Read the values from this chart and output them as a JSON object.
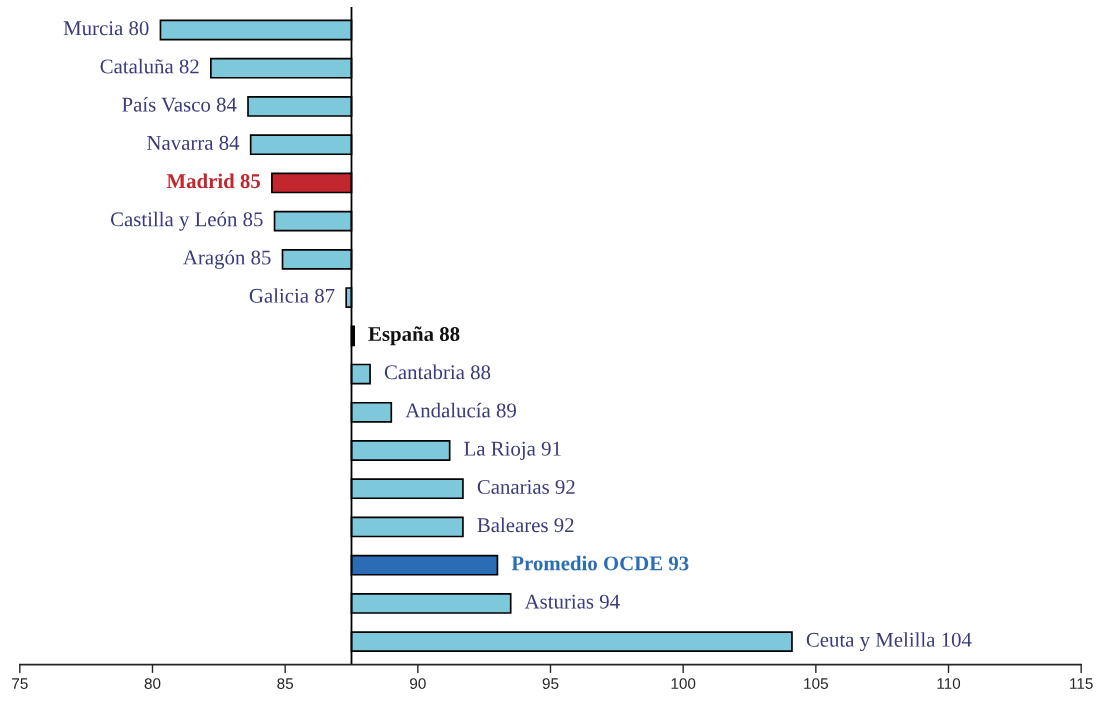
{
  "chart_data": {
    "type": "bar",
    "orientation": "horizontal",
    "categories": [
      "Murcia 80",
      "Cataluña 82",
      "País Vasco 84",
      "Navarra 84",
      "Madrid 85",
      "Castilla y León 85",
      "Aragón 85",
      "Galicia 87",
      "España 88",
      "Cantabria 88",
      "Andalucía 89",
      "La Rioja 91",
      "Canarias 92",
      "Baleares 92",
      "Promedio OCDE 93",
      "Asturias 94",
      "Ceuta y Melilla 104"
    ],
    "base": [
      87.5,
      87.5,
      87.5,
      87.5,
      87.5,
      87.5,
      87.5,
      87.5,
      87.5,
      87.5,
      87.5,
      87.5,
      87.5,
      87.5,
      87.5,
      87.5,
      87.5
    ],
    "values": [
      -7.2,
      -5.3,
      -3.9,
      -3.8,
      -3.0,
      -2.9,
      -2.6,
      -0.2,
      0.1,
      0.7,
      1.5,
      3.7,
      4.2,
      4.2,
      5.5,
      6.0,
      16.6
    ],
    "colors": [
      "#7ec8dc",
      "#7ec8dc",
      "#7ec8dc",
      "#7ec8dc",
      "#c1272d",
      "#7ec8dc",
      "#7ec8dc",
      "#7ec8dc",
      "#111111",
      "#7ec8dc",
      "#7ec8dc",
      "#7ec8dc",
      "#7ec8dc",
      "#7ec8dc",
      "#2a6db5",
      "#7ec8dc",
      "#7ec8dc"
    ],
    "xlim": [
      75,
      115
    ],
    "xticks": [
      75,
      80,
      85,
      90,
      95,
      100,
      105,
      110,
      115
    ],
    "ref_lines": [
      {
        "axis": "x",
        "value": 87.5,
        "color": "#000000"
      }
    ],
    "tick_labels": "x",
    "grid": false,
    "legend": false
  }
}
